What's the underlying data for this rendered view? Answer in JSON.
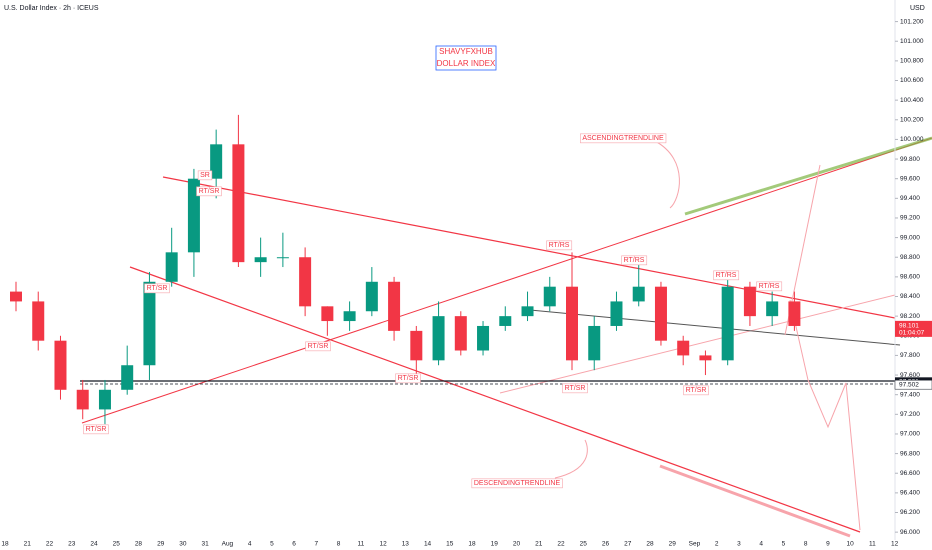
{
  "chart_data": {
    "type": "candlestick",
    "title": "U.S. Dollar Index · 2h · ICEUS",
    "currency": "USD",
    "watermark": [
      "SHAVYFXHUB",
      "DOLLAR INDEX"
    ],
    "annotations": [
      "SR",
      "RT/SR",
      "RT/SR",
      "RT/SR",
      "RT/SR",
      "RT/SR",
      "RT/SR",
      "RT/SR",
      "RT/RS",
      "RT/RS",
      "RT/RS",
      "RT/RS",
      "ASCENDINGTRENDLINE",
      "DESCENDINGTRENDLINE"
    ],
    "categories": [
      "18",
      "21",
      "22",
      "23",
      "24",
      "25",
      "28",
      "29",
      "30",
      "31",
      "Aug",
      "4",
      "5",
      "6",
      "7",
      "8",
      "11",
      "12",
      "13",
      "14",
      "15",
      "18",
      "19",
      "20",
      "21",
      "22",
      "25",
      "26",
      "27",
      "28",
      "29",
      "Sep",
      "2",
      "3",
      "4",
      "5",
      "8",
      "9",
      "10",
      "11",
      "12"
    ],
    "open": [
      98.45,
      98.35,
      97.95,
      97.45,
      97.25,
      97.45,
      97.7,
      98.55,
      98.85,
      99.6,
      99.95,
      98.75,
      98.8,
      98.8,
      98.3,
      98.15,
      98.25,
      98.55,
      98.05,
      97.75,
      98.2,
      97.85,
      98.1,
      98.2,
      98.3,
      98.5,
      97.75,
      98.1,
      98.35,
      98.5,
      97.95,
      97.8,
      97.75,
      98.5,
      98.2,
      98.35,
      null,
      null,
      null,
      null,
      null
    ],
    "high": [
      98.55,
      98.45,
      98.0,
      97.55,
      97.55,
      97.9,
      98.65,
      99.1,
      99.7,
      100.1,
      100.25,
      99.0,
      99.05,
      98.9,
      98.3,
      98.35,
      98.7,
      98.6,
      98.1,
      98.35,
      98.25,
      98.15,
      98.3,
      98.45,
      98.6,
      98.85,
      98.2,
      98.45,
      98.75,
      98.55,
      98.0,
      97.85,
      98.6,
      98.55,
      98.45,
      98.45,
      null,
      null,
      null,
      null,
      null
    ],
    "low": [
      98.25,
      97.85,
      97.35,
      97.15,
      97.1,
      97.4,
      97.55,
      98.5,
      98.6,
      99.4,
      98.7,
      98.6,
      98.7,
      98.2,
      98.0,
      98.05,
      98.2,
      97.95,
      97.6,
      97.7,
      97.8,
      97.8,
      98.05,
      98.15,
      98.25,
      97.65,
      97.65,
      98.05,
      98.3,
      97.9,
      97.7,
      97.6,
      97.7,
      98.1,
      98.1,
      98.05,
      null,
      null,
      null,
      null,
      null
    ],
    "close": [
      98.35,
      97.95,
      97.45,
      97.25,
      97.45,
      97.7,
      98.55,
      98.85,
      99.6,
      99.95,
      98.75,
      98.8,
      98.8,
      98.3,
      98.15,
      98.25,
      98.55,
      98.05,
      97.75,
      98.2,
      97.85,
      98.1,
      98.2,
      98.3,
      98.5,
      97.75,
      98.1,
      98.35,
      98.5,
      97.95,
      97.8,
      97.75,
      98.5,
      98.2,
      98.35,
      98.1,
      null,
      null,
      null,
      null,
      null
    ],
    "up_color": "#089981",
    "down_color": "#f23645",
    "ylim": [
      95.92,
      101.42
    ],
    "yticks": [
      {
        "value": 96.0,
        "label": "96.000"
      },
      {
        "value": 96.2,
        "label": "96.200"
      },
      {
        "value": 96.4,
        "label": "96.400"
      },
      {
        "value": 96.6,
        "label": "96.600"
      },
      {
        "value": 96.8,
        "label": "96.800"
      },
      {
        "value": 97.0,
        "label": "97.000"
      },
      {
        "value": 97.2,
        "label": "97.200"
      },
      {
        "value": 97.4,
        "label": "97.400"
      },
      {
        "value": 97.6,
        "label": "97.600"
      },
      {
        "value": 97.8,
        "label": "97.800"
      },
      {
        "value": 98.0,
        "label": "98.000"
      },
      {
        "value": 98.2,
        "label": "98.200"
      },
      {
        "value": 98.4,
        "label": "98.400"
      },
      {
        "value": 98.6,
        "label": "98.600"
      },
      {
        "value": 98.8,
        "label": "98.800"
      },
      {
        "value": 99.0,
        "label": "99.000"
      },
      {
        "value": 99.2,
        "label": "99.200"
      },
      {
        "value": 99.4,
        "label": "99.400"
      },
      {
        "value": 99.6,
        "label": "99.600"
      },
      {
        "value": 99.8,
        "label": "99.800"
      },
      {
        "value": 100.0,
        "label": "100.000"
      },
      {
        "value": 100.2,
        "label": "100.200"
      },
      {
        "value": 100.4,
        "label": "100.400"
      },
      {
        "value": 100.6,
        "label": "100.600"
      },
      {
        "value": 100.8,
        "label": "100.800"
      },
      {
        "value": 101.0,
        "label": "101.000"
      },
      {
        "value": 101.2,
        "label": "101.200"
      }
    ],
    "price_tags": [
      {
        "value": 98.101,
        "sub": "01:04:07",
        "color": "#f23645"
      },
      {
        "value": 97.531,
        "color": "#131722"
      },
      {
        "value": 97.502,
        "color": "#ffffff"
      }
    ],
    "grid": false
  }
}
